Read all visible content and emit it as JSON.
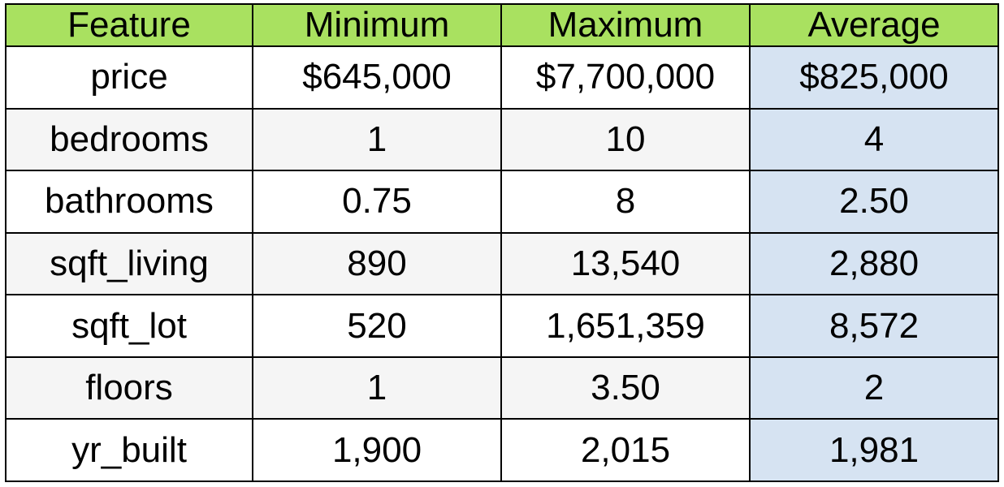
{
  "colors": {
    "header_bg": "#a9e160",
    "average_column_bg": "#d6e3f2",
    "row_alt_bg": "#f5f5f5",
    "row_bg": "#ffffff",
    "border": "#000000"
  },
  "table": {
    "headers": [
      "Feature",
      "Minimum",
      "Maximum",
      "Average"
    ],
    "rows": [
      [
        "price",
        "$645,000",
        "$7,700,000",
        "$825,000"
      ],
      [
        "bedrooms",
        "1",
        "10",
        "4"
      ],
      [
        "bathrooms",
        "0.75",
        "8",
        "2.50"
      ],
      [
        "sqft_living",
        "890",
        "13,540",
        "2,880"
      ],
      [
        "sqft_lot",
        "520",
        "1,651,359",
        "8,572"
      ],
      [
        "floors",
        "1",
        "3.50",
        "2"
      ],
      [
        "yr_built",
        "1,900",
        "2,015",
        "1,981"
      ]
    ]
  }
}
